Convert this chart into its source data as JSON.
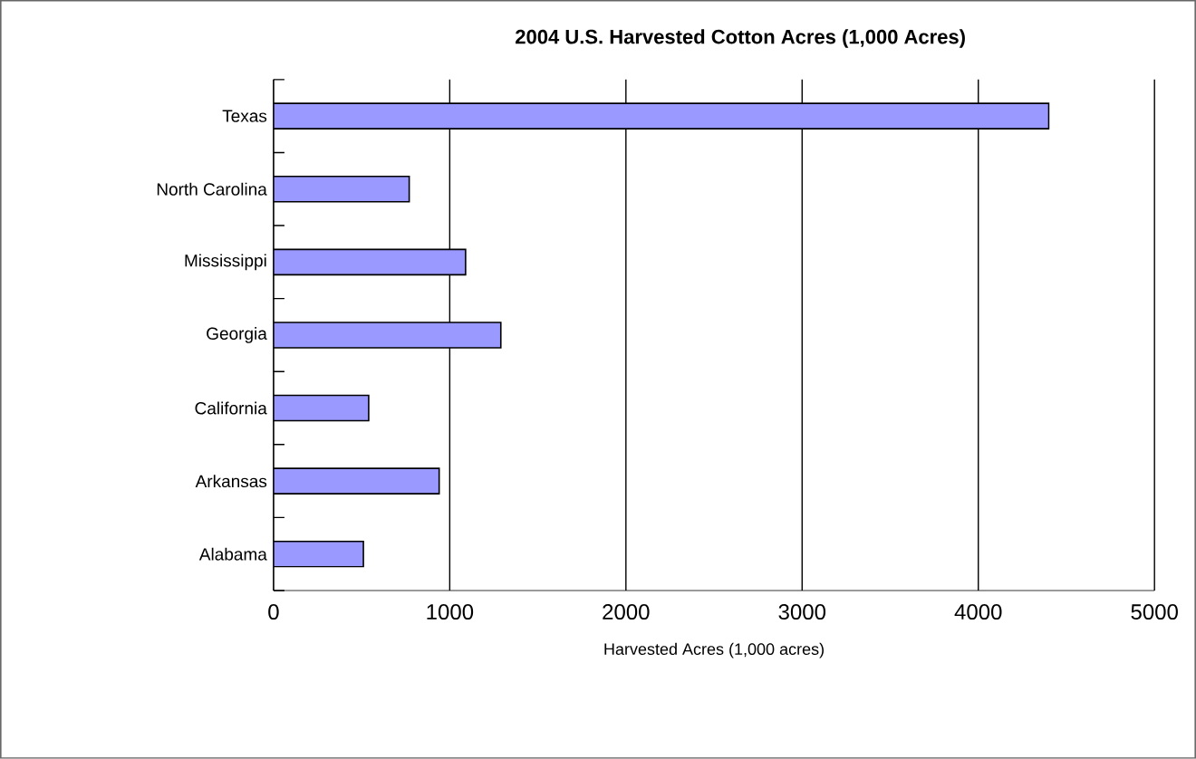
{
  "chart_data": {
    "type": "bar",
    "orientation": "horizontal",
    "title": "2004 U.S. Harvested Cotton Acres (1,000 Acres)",
    "xlabel": "Harvested Acres  (1,000 acres)",
    "categories": [
      "Texas",
      "North Carolina",
      "Mississippi",
      "Georgia",
      "California",
      "Arkansas",
      "Alabama"
    ],
    "values": [
      4400,
      770,
      1090,
      1290,
      540,
      940,
      510
    ],
    "color": "#9999ff",
    "xlim": [
      0,
      5000
    ],
    "xticks": [
      0,
      1000,
      2000,
      3000,
      4000,
      5000
    ],
    "grid": "x"
  }
}
